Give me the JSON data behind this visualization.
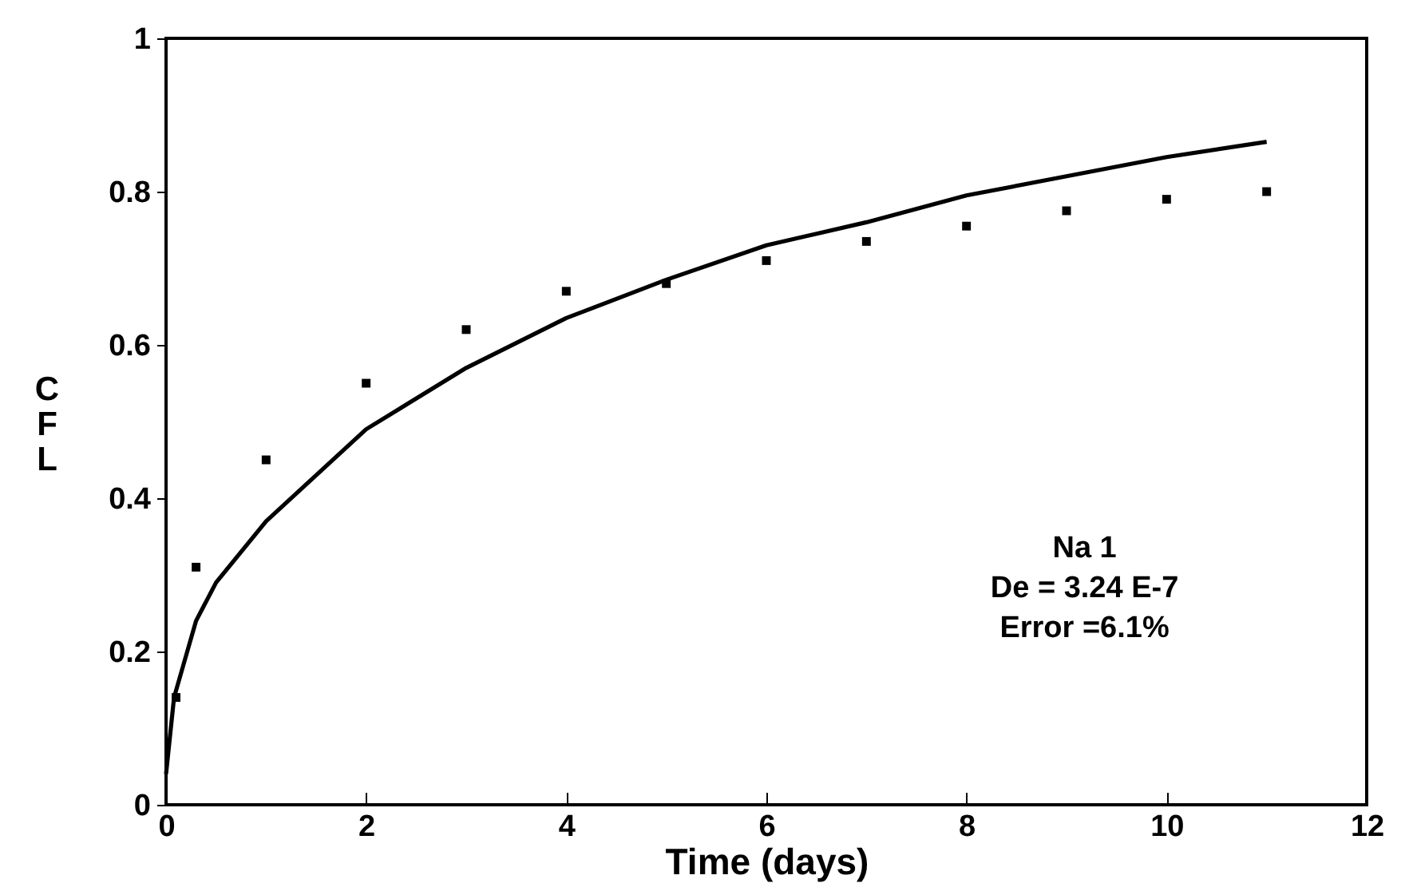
{
  "chart_data": {
    "type": "scatter",
    "xlabel": "Time (days)",
    "ylabel": "CFL",
    "xlim": [
      0,
      12
    ],
    "ylim": [
      0,
      1
    ],
    "xticks": [
      0,
      2,
      4,
      6,
      8,
      10,
      12
    ],
    "yticks": [
      0,
      0.2,
      0.4,
      0.6,
      0.8,
      1
    ],
    "grid": false,
    "annotations": [
      "Na 1",
      "De = 3.24 E-7",
      "Error =6.1%"
    ],
    "series": [
      {
        "marker": "square",
        "color": "#000000",
        "x": [
          0.1,
          0.3,
          1,
          2,
          3,
          4,
          5,
          6,
          7,
          8,
          9,
          10,
          11
        ],
        "values": [
          0.14,
          0.31,
          0.45,
          0.55,
          0.62,
          0.67,
          0.68,
          0.71,
          0.735,
          0.755,
          0.775,
          0.79,
          0.8
        ]
      },
      {
        "type": "line",
        "marker": "none",
        "color": "#000000",
        "x": [
          0,
          0.08,
          0.3,
          0.5,
          1,
          2,
          3,
          4,
          5,
          6,
          7,
          8,
          9,
          10,
          11
        ],
        "values": [
          0.04,
          0.14,
          0.24,
          0.29,
          0.37,
          0.49,
          0.57,
          0.635,
          0.685,
          0.73,
          0.76,
          0.795,
          0.82,
          0.845,
          0.865
        ]
      }
    ]
  }
}
